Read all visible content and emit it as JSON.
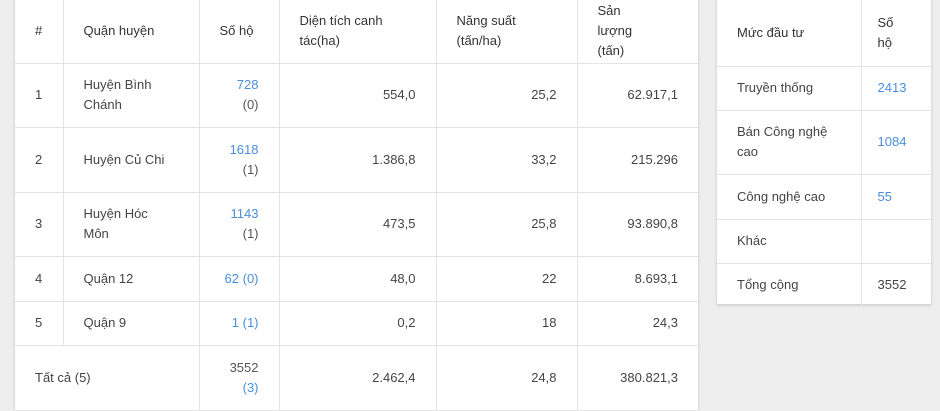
{
  "main_table": {
    "headers": {
      "index": "#",
      "district": "Quận huyện",
      "households": "Số hộ",
      "area": "Diện tích canh tác(ha)",
      "yield": "Năng suất (tấn/ha)",
      "output": "Sản lượng (tấn)"
    },
    "rows": [
      {
        "index": "1",
        "district": "Huyện Bình Chánh",
        "households_link": "728",
        "households_sub": "(0)",
        "area": "554,0",
        "yield": "25,2",
        "output": "62.917,1"
      },
      {
        "index": "2",
        "district": "Huyện Củ Chi",
        "households_link": "1618",
        "households_sub": "(1)",
        "area": "1.386,8",
        "yield": "33,2",
        "output": "215.296"
      },
      {
        "index": "3",
        "district": "Huyện Hóc Môn",
        "households_link": "1143",
        "households_sub": "(1)",
        "area": "473,5",
        "yield": "25,8",
        "output": "93.890,8"
      },
      {
        "index": "4",
        "district": "Quận 12",
        "households_link": "62",
        "households_sub": "(0)",
        "area": "48,0",
        "yield": "22",
        "output": "8.693,1"
      },
      {
        "index": "5",
        "district": "Quận 9",
        "households_link": "1",
        "households_sub": "(1)",
        "area": "0,2",
        "yield": "18",
        "output": "24,3"
      }
    ],
    "total": {
      "label": "Tất cả (5)",
      "households": "3552",
      "households_sub": "(3)",
      "area": "2.462,4",
      "yield": "24,8",
      "output": "380.821,3"
    }
  },
  "side_table": {
    "headers": {
      "level": "Mức đầu tư",
      "households": "Số hộ"
    },
    "rows": [
      {
        "level": "Truyền thống",
        "households": "2413",
        "link": true
      },
      {
        "level": "Bán Công nghệ cao",
        "households": "1084",
        "link": true
      },
      {
        "level": "Công nghệ cao",
        "households": "55",
        "link": true
      },
      {
        "level": "Khác",
        "households": "",
        "link": false
      },
      {
        "level": "Tổng cộng",
        "households": "3552",
        "link": false
      }
    ]
  },
  "colors": {
    "link": "#4a8fdc",
    "background": "#eeeeee",
    "border": "#e4e4e4"
  }
}
